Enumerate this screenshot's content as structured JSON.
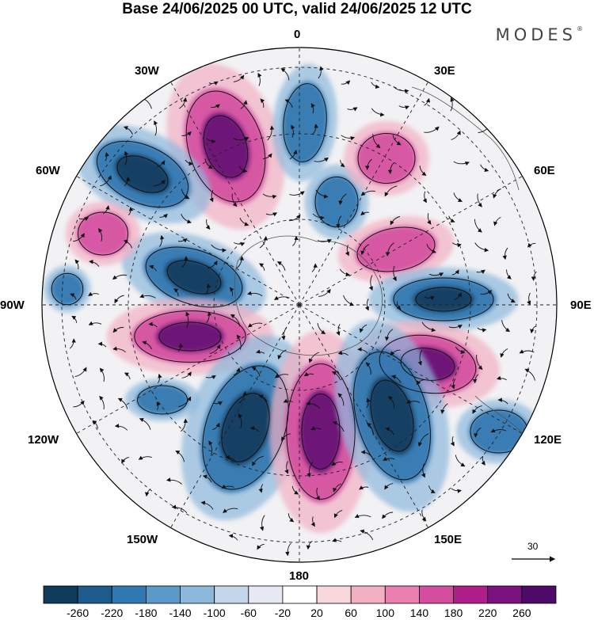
{
  "title": "Base 24/06/2025 00 UTC, valid 24/06/2025 12 UTC",
  "brand": "MODES",
  "brand_mark": "®",
  "longitude_labels": {
    "lon_0": "0",
    "lon_30e": "30E",
    "lon_60e": "60E",
    "lon_90e": "90E",
    "lon_120e": "120E",
    "lon_150e": "150E",
    "lon_180": "180",
    "lon_150w": "150W",
    "lon_120w": "120W",
    "lon_90w": "90W",
    "lon_60w": "60W",
    "lon_30w": "30W"
  },
  "vector_scale": "30",
  "colorbar": {
    "ticks": [
      "-260",
      "-220",
      "-180",
      "-140",
      "-100",
      "-60",
      "-20",
      "20",
      "60",
      "100",
      "140",
      "180",
      "220",
      "260"
    ],
    "colors": [
      "#0f3a5a",
      "#1d5b8c",
      "#2f78b2",
      "#5b9bc9",
      "#8db8dc",
      "#c4d6ea",
      "#e6e8f3",
      "#ffffff",
      "#f8d8dd",
      "#f3b0c3",
      "#ea7fb0",
      "#d44d9f",
      "#b01e8c",
      "#7a137f",
      "#4d0a69"
    ]
  },
  "palette": {
    "neg_strong": "#123f63",
    "neg_mid": "#2d74ae",
    "neg_light": "#8db8dc",
    "pos_light": "#f3b0c3",
    "pos_mid": "#d44d9f",
    "pos_strong": "#6e1278"
  }
}
